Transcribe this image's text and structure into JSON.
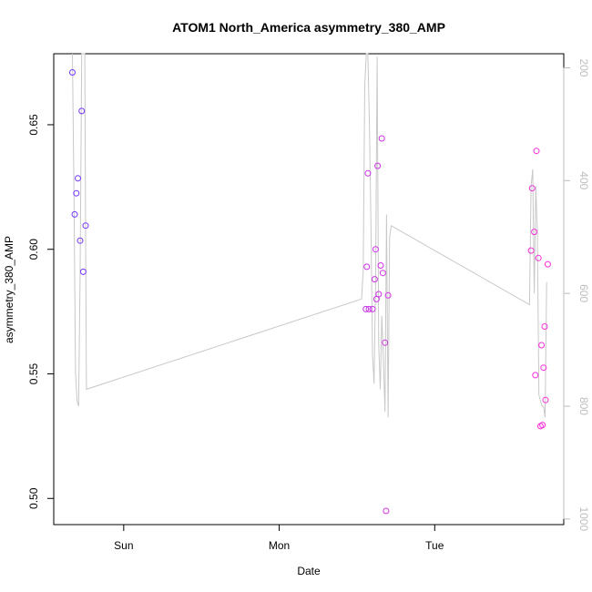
{
  "chart_data": {
    "type": "scatter",
    "title": "ATOM1 North_America asymmetry_380_AMP",
    "xlabel": "Date",
    "ylabel": "asymmetry_380_AMP",
    "xlim": [
      0,
      3.28
    ],
    "x_ticks": [
      {
        "label": "Sun",
        "value": 0.45
      },
      {
        "label": "Mon",
        "value": 1.45
      },
      {
        "label": "Tue",
        "value": 2.45
      }
    ],
    "ylim": [
      0.4895,
      0.6785
    ],
    "y_ticks": [
      0.5,
      0.55,
      0.6,
      0.65
    ],
    "y_tick_labels": [
      "0.50",
      "0.55",
      "0.60",
      "0.65"
    ],
    "y2lim": [
      1010,
      175
    ],
    "y2_ticks": [
      200,
      400,
      600,
      800,
      1000
    ],
    "y2_tick_labels": [
      "200",
      "400",
      "600",
      "800",
      "1000"
    ],
    "colors": {
      "axis": "#000000",
      "line": "#c8c8c8",
      "right_axis": "#bdbdbd",
      "point_start": "#6a36ff",
      "point_end": "#ff2fd9"
    },
    "points": [
      {
        "x": 0.12,
        "y": 0.671,
        "c": 0.05
      },
      {
        "x": 0.135,
        "y": 0.614,
        "c": 0.05
      },
      {
        "x": 0.145,
        "y": 0.6225,
        "c": 0.06
      },
      {
        "x": 0.155,
        "y": 0.6285,
        "c": 0.06
      },
      {
        "x": 0.17,
        "y": 0.6035,
        "c": 0.07
      },
      {
        "x": 0.18,
        "y": 0.6555,
        "c": 0.07
      },
      {
        "x": 0.19,
        "y": 0.591,
        "c": 0.08
      },
      {
        "x": 0.205,
        "y": 0.6095,
        "c": 0.09
      },
      {
        "x": 2.007,
        "y": 0.576,
        "c": 0.62
      },
      {
        "x": 2.013,
        "y": 0.593,
        "c": 0.63
      },
      {
        "x": 2.02,
        "y": 0.6305,
        "c": 0.63
      },
      {
        "x": 2.027,
        "y": 0.576,
        "c": 0.64
      },
      {
        "x": 2.05,
        "y": 0.576,
        "c": 0.65
      },
      {
        "x": 2.064,
        "y": 0.588,
        "c": 0.66
      },
      {
        "x": 2.07,
        "y": 0.6,
        "c": 0.66
      },
      {
        "x": 2.076,
        "y": 0.58,
        "c": 0.67
      },
      {
        "x": 2.083,
        "y": 0.6335,
        "c": 0.67
      },
      {
        "x": 2.09,
        "y": 0.582,
        "c": 0.68
      },
      {
        "x": 2.103,
        "y": 0.5935,
        "c": 0.69
      },
      {
        "x": 2.11,
        "y": 0.6445,
        "c": 0.69
      },
      {
        "x": 2.117,
        "y": 0.5905,
        "c": 0.7
      },
      {
        "x": 2.13,
        "y": 0.5625,
        "c": 0.71
      },
      {
        "x": 2.137,
        "y": 0.495,
        "c": 0.71
      },
      {
        "x": 2.15,
        "y": 0.5815,
        "c": 0.72
      },
      {
        "x": 3.07,
        "y": 0.5995,
        "c": 0.92
      },
      {
        "x": 3.077,
        "y": 0.6245,
        "c": 0.92
      },
      {
        "x": 3.09,
        "y": 0.607,
        "c": 0.93
      },
      {
        "x": 3.097,
        "y": 0.5495,
        "c": 0.93
      },
      {
        "x": 3.104,
        "y": 0.6395,
        "c": 0.94
      },
      {
        "x": 3.117,
        "y": 0.5965,
        "c": 0.94
      },
      {
        "x": 3.13,
        "y": 0.529,
        "c": 0.95
      },
      {
        "x": 3.137,
        "y": 0.5615,
        "c": 0.95
      },
      {
        "x": 3.143,
        "y": 0.5295,
        "c": 0.96
      },
      {
        "x": 3.15,
        "y": 0.5525,
        "c": 0.96
      },
      {
        "x": 3.157,
        "y": 0.569,
        "c": 0.97
      },
      {
        "x": 3.163,
        "y": 0.5395,
        "c": 0.97
      },
      {
        "x": 3.177,
        "y": 0.594,
        "c": 0.98
      }
    ],
    "line_series_y2": [
      [
        0.12,
        175
      ],
      [
        0.13,
        420
      ],
      [
        0.14,
        740
      ],
      [
        0.15,
        790
      ],
      [
        0.16,
        800
      ],
      [
        0.17,
        560
      ],
      [
        0.18,
        175
      ],
      [
        0.19,
        175
      ],
      [
        0.2,
        175
      ],
      [
        0.205,
        500
      ],
      [
        0.21,
        770
      ],
      [
        1.98,
        610
      ],
      [
        1.99,
        560
      ],
      [
        2.0,
        230
      ],
      [
        2.01,
        175
      ],
      [
        2.02,
        175
      ],
      [
        2.03,
        300
      ],
      [
        2.04,
        480
      ],
      [
        2.05,
        710
      ],
      [
        2.06,
        760
      ],
      [
        2.07,
        580
      ],
      [
        2.08,
        180
      ],
      [
        2.09,
        690
      ],
      [
        2.1,
        770
      ],
      [
        2.11,
        640
      ],
      [
        2.12,
        720
      ],
      [
        2.13,
        810
      ],
      [
        2.14,
        460
      ],
      [
        2.15,
        820
      ],
      [
        2.16,
        500
      ],
      [
        2.17,
        480
      ],
      [
        3.06,
        620
      ],
      [
        3.07,
        410
      ],
      [
        3.08,
        380
      ],
      [
        3.09,
        600
      ],
      [
        3.1,
        410
      ],
      [
        3.11,
        490
      ],
      [
        3.12,
        780
      ],
      [
        3.13,
        790
      ],
      [
        3.14,
        800
      ],
      [
        3.15,
        800
      ],
      [
        3.16,
        820
      ],
      [
        3.17,
        580
      ]
    ]
  }
}
